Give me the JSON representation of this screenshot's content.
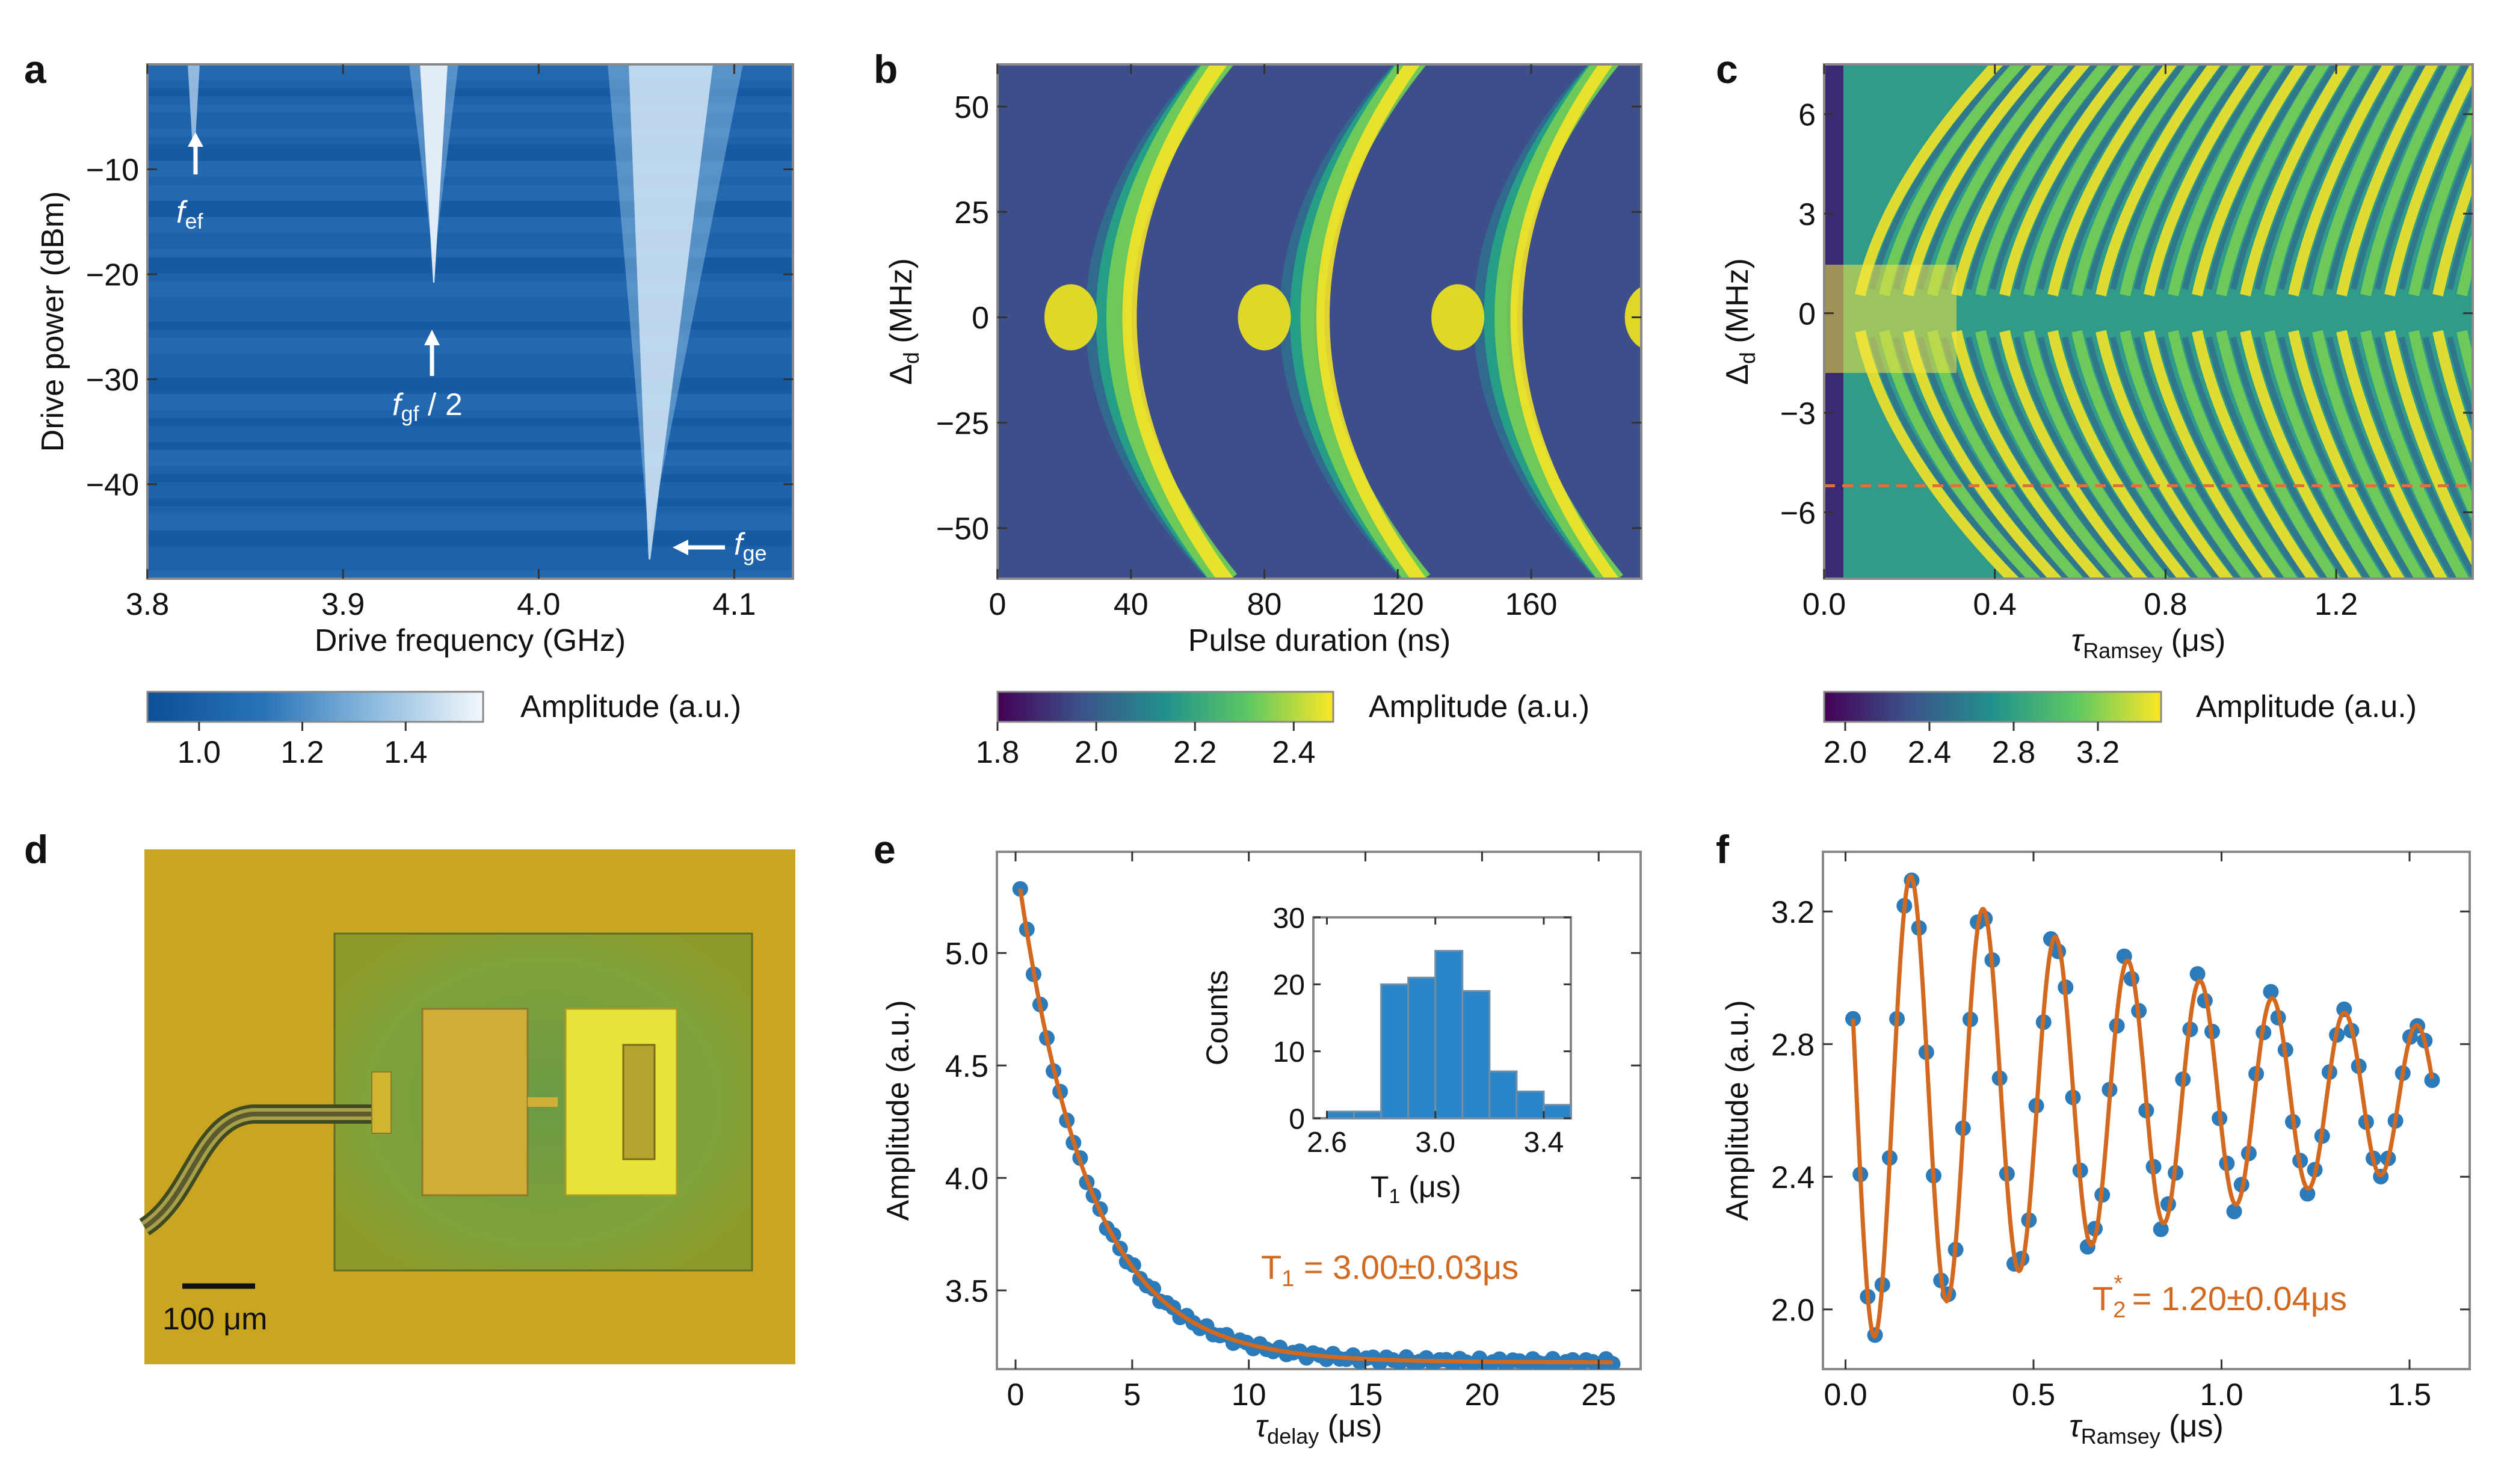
{
  "figure": {
    "panel_labels": [
      "a",
      "b",
      "c",
      "d",
      "e",
      "f"
    ]
  },
  "panel_a": {
    "annotations": {
      "fef": {
        "main": "f",
        "sub": "ef",
        "tail": ""
      },
      "fgf": {
        "main": "f",
        "sub": "gf",
        "tail": " / 2"
      },
      "fge": {
        "main": "f",
        "sub": "ge",
        "tail": ""
      }
    },
    "colorbar": {
      "label": "Amplitude (a.u.)",
      "ticks": [
        "1.0",
        "1.2",
        "1.4"
      ]
    }
  },
  "panel_b": {
    "colorbar": {
      "label": "Amplitude (a.u.)",
      "ticks": [
        "1.8",
        "2.0",
        "2.2",
        "2.4"
      ]
    }
  },
  "panel_c": {
    "colorbar": {
      "label": "Amplitude (a.u.)",
      "ticks": [
        "2.0",
        "2.4",
        "2.8",
        "3.2"
      ]
    }
  },
  "panel_d": {
    "scale_bar_label": "100 μm",
    "colors": {
      "background": "#c9a521",
      "pad": "#e6e33a",
      "substrate": "#7f9a31"
    }
  },
  "panel_e": {
    "annotation": {
      "main": "T",
      "sub": "1",
      "tail": " = 3.00±0.03μs"
    },
    "inset": {
      "xlabel_main": "T",
      "xlabel_sub": "1",
      "xlabel_tail": " (μs)",
      "ylabel": "Counts"
    }
  },
  "panel_f": {
    "annotation": {
      "main": "T",
      "sub": "2",
      "sup": "*",
      "tail": " = 1.20±0.04μs"
    }
  },
  "chart_data": [
    {
      "id": "a",
      "type": "heatmap",
      "xlabel": "Drive frequency (GHz)",
      "ylabel": "Drive power (dBm)",
      "xlim": [
        3.8,
        4.13
      ],
      "ylim": [
        -49,
        0
      ],
      "xticks": [
        3.8,
        3.9,
        4.0,
        4.1
      ],
      "yticks": [
        -10,
        -20,
        -30,
        -40
      ],
      "xtick_labels": [
        "3.8",
        "3.9",
        "4.0",
        "4.1"
      ],
      "ytick_labels": [
        "−10",
        "−20",
        "−30",
        "−40"
      ],
      "peaks_GHz": {
        "f_ef": 3.822,
        "f_gf_half": 3.946,
        "f_ge": 4.058
      },
      "colorbar_range": [
        0.9,
        1.55
      ]
    },
    {
      "id": "b",
      "type": "heatmap",
      "xlabel": "Pulse duration (ns)",
      "ylabel": "Δd (MHz)",
      "xlim": [
        0,
        193
      ],
      "ylim": [
        -62,
        60
      ],
      "xticks": [
        0,
        40,
        80,
        120,
        160
      ],
      "yticks": [
        50,
        25,
        0,
        -25,
        -50
      ],
      "xtick_labels": [
        "0",
        "40",
        "80",
        "120",
        "160"
      ],
      "ytick_labels": [
        "50",
        "25",
        "0",
        "−25",
        "−50"
      ],
      "rabi_period_ns": 58,
      "colorbar_range": [
        1.8,
        2.48
      ]
    },
    {
      "id": "c",
      "type": "heatmap",
      "xlabel": "τRamsey (μs)",
      "ylabel": "Δd (MHz)",
      "xlim": [
        0,
        1.52
      ],
      "ylim": [
        -8,
        7.5
      ],
      "xticks": [
        0.0,
        0.4,
        0.8,
        1.2
      ],
      "yticks": [
        6,
        3,
        0,
        -3,
        -6
      ],
      "xtick_labels": [
        "0.0",
        "0.4",
        "0.8",
        "1.2"
      ],
      "ytick_labels": [
        "6",
        "3",
        "0",
        "−3",
        "−6"
      ],
      "dashed_line_detuning_MHz": -5.2,
      "colorbar_range": [
        1.9,
        3.5
      ]
    },
    {
      "id": "e",
      "type": "scatter",
      "xlabel": "τdelay (μs)",
      "ylabel": "Amplitude (a.u.)",
      "xlim": [
        -0.8,
        26.8
      ],
      "ylim": [
        3.15,
        5.45
      ],
      "xticks": [
        0,
        5,
        10,
        15,
        20,
        25
      ],
      "yticks": [
        3.5,
        4.0,
        4.5,
        5.0
      ],
      "xtick_labels": [
        "0",
        "5",
        "10",
        "15",
        "20",
        "25"
      ],
      "ytick_labels": [
        "3.5",
        "4.0",
        "4.5",
        "5.0"
      ],
      "fit": {
        "model": "A*exp(-t/T1)+C",
        "A": 2.25,
        "T1_us": 3.0,
        "C": 3.18
      },
      "points": {
        "x_start": 0.2,
        "x_end": 25.6,
        "count": 90
      },
      "series": [
        {
          "name": "data",
          "color": "#2b7bba"
        },
        {
          "name": "fit",
          "color": "#d2691e"
        }
      ]
    },
    {
      "id": "e_inset",
      "type": "bar",
      "xlabel": "T1 (μs)",
      "ylabel": "Counts",
      "bin_edges": [
        2.6,
        2.7,
        2.8,
        2.9,
        3.0,
        3.1,
        3.2,
        3.3,
        3.4,
        3.5
      ],
      "values": [
        1,
        1,
        20,
        21,
        25,
        19,
        7,
        4,
        2
      ],
      "xlim": [
        2.55,
        3.5
      ],
      "ylim": [
        0,
        30
      ],
      "xticks": [
        2.6,
        3.0,
        3.4
      ],
      "yticks": [
        0,
        10,
        20,
        30
      ],
      "xtick_labels": [
        "2.6",
        "3.0",
        "3.4"
      ],
      "ytick_labels": [
        "0",
        "10",
        "20",
        "30"
      ]
    },
    {
      "id": "f",
      "type": "scatter",
      "xlabel": "τRamsey (μs)",
      "ylabel": "Amplitude (a.u.)",
      "xlim": [
        -0.06,
        1.66
      ],
      "ylim": [
        1.82,
        3.38
      ],
      "xticks": [
        0.0,
        0.5,
        1.0,
        1.5
      ],
      "yticks": [
        2.0,
        2.4,
        2.8,
        3.2
      ],
      "xtick_labels": [
        "0.0",
        "0.5",
        "1.0",
        "1.5"
      ],
      "ytick_labels": [
        "2.0",
        "2.4",
        "2.8",
        "3.2"
      ],
      "fit": {
        "model": "C+A*exp(-t/T2*)*cos(2*pi*f*t+phi)",
        "C": 2.64,
        "A": 0.77,
        "T2star_us": 1.2,
        "freq_MHz": 5.2,
        "phi": 0.6
      },
      "points": {
        "x_start": 0.02,
        "x_end": 1.56,
        "count": 80
      },
      "series": [
        {
          "name": "data",
          "color": "#2b7bba"
        },
        {
          "name": "fit",
          "color": "#d2691e"
        }
      ]
    }
  ]
}
